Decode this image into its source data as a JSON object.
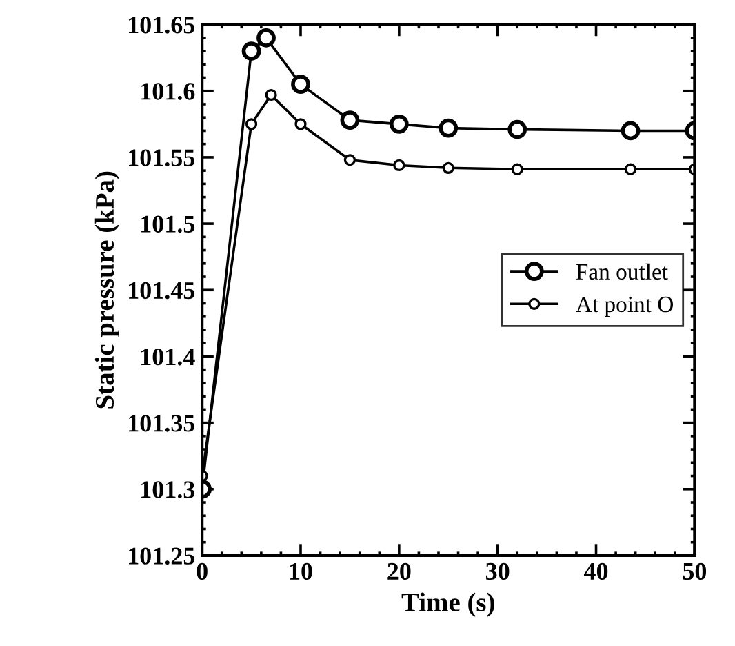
{
  "chart_data": {
    "type": "line",
    "xlabel": "Time (s)",
    "ylabel": "Static pressure (kPa)",
    "series": [
      {
        "name": "Fan outlet",
        "color": "#000000",
        "x": [
          0,
          5,
          6.5,
          10,
          15,
          20,
          25,
          32,
          43.5,
          50
        ],
        "values": [
          101.3,
          101.63,
          101.64,
          101.605,
          101.578,
          101.575,
          101.572,
          101.571,
          101.57,
          101.57
        ]
      },
      {
        "name": "At point O",
        "color": "#000000",
        "x": [
          0,
          5,
          7,
          10,
          15,
          20,
          25,
          32,
          43.5,
          50
        ],
        "values": [
          101.31,
          101.575,
          101.597,
          101.575,
          101.548,
          101.544,
          101.542,
          101.541,
          101.541,
          101.541
        ]
      }
    ],
    "xlim": [
      0,
      50
    ],
    "ylim": [
      101.25,
      101.65
    ],
    "xticks": [
      0,
      10,
      20,
      30,
      40,
      50
    ],
    "yticks": [
      101.25,
      101.3,
      101.35,
      101.4,
      101.45,
      101.5,
      101.55,
      101.6,
      101.65
    ],
    "legend": "center right",
    "marker": "circle",
    "grid": false
  }
}
